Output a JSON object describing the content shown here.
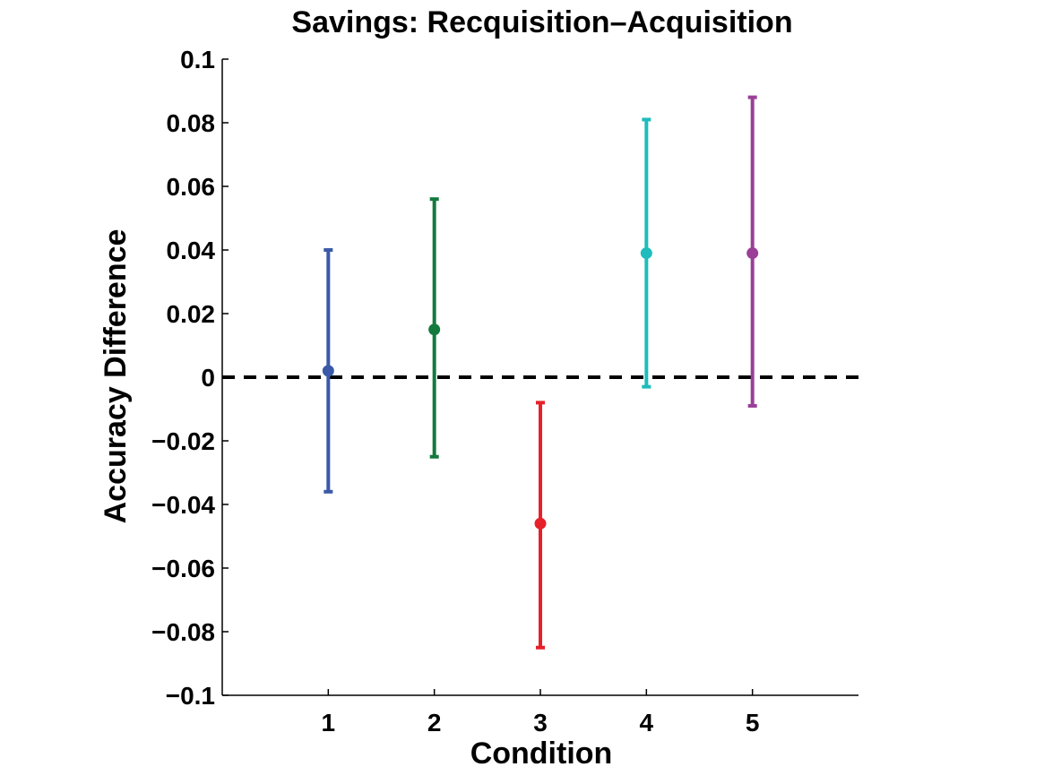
{
  "chart_data": {
    "type": "scatter",
    "title": "Savings: Recquisition–Acquisition",
    "xlabel": "Condition",
    "ylabel": "Accuracy Difference",
    "xlim": [
      0,
      6
    ],
    "ylim": [
      -0.1,
      0.1
    ],
    "x_ticks": [
      1,
      2,
      3,
      4,
      5
    ],
    "x_tick_labels": [
      "1",
      "2",
      "3",
      "4",
      "5"
    ],
    "y_ticks": [
      0.1,
      0.08,
      0.06,
      0.04,
      0.02,
      0,
      -0.02,
      -0.04,
      -0.06,
      -0.08,
      -0.1
    ],
    "y_tick_labels": [
      "0.1",
      "0.08",
      "0.06",
      "0.04",
      "0.02",
      "0",
      "−0.02",
      "−0.04",
      "−0.06",
      "−0.08",
      "−0.1"
    ],
    "grid": false,
    "reference_line": {
      "y": 0,
      "style": "dashed",
      "color": "#000000"
    },
    "points": [
      {
        "x": 1,
        "y": 0.002,
        "lower": -0.036,
        "upper": 0.04,
        "color": "#3a5aa8"
      },
      {
        "x": 2,
        "y": 0.015,
        "lower": -0.025,
        "upper": 0.056,
        "color": "#137a3e"
      },
      {
        "x": 3,
        "y": -0.046,
        "lower": -0.085,
        "upper": -0.008,
        "color": "#e62129"
      },
      {
        "x": 4,
        "y": 0.039,
        "lower": -0.003,
        "upper": 0.081,
        "color": "#1fbcbd"
      },
      {
        "x": 5,
        "y": 0.039,
        "lower": -0.009,
        "upper": 0.088,
        "color": "#9a3f98"
      }
    ]
  }
}
